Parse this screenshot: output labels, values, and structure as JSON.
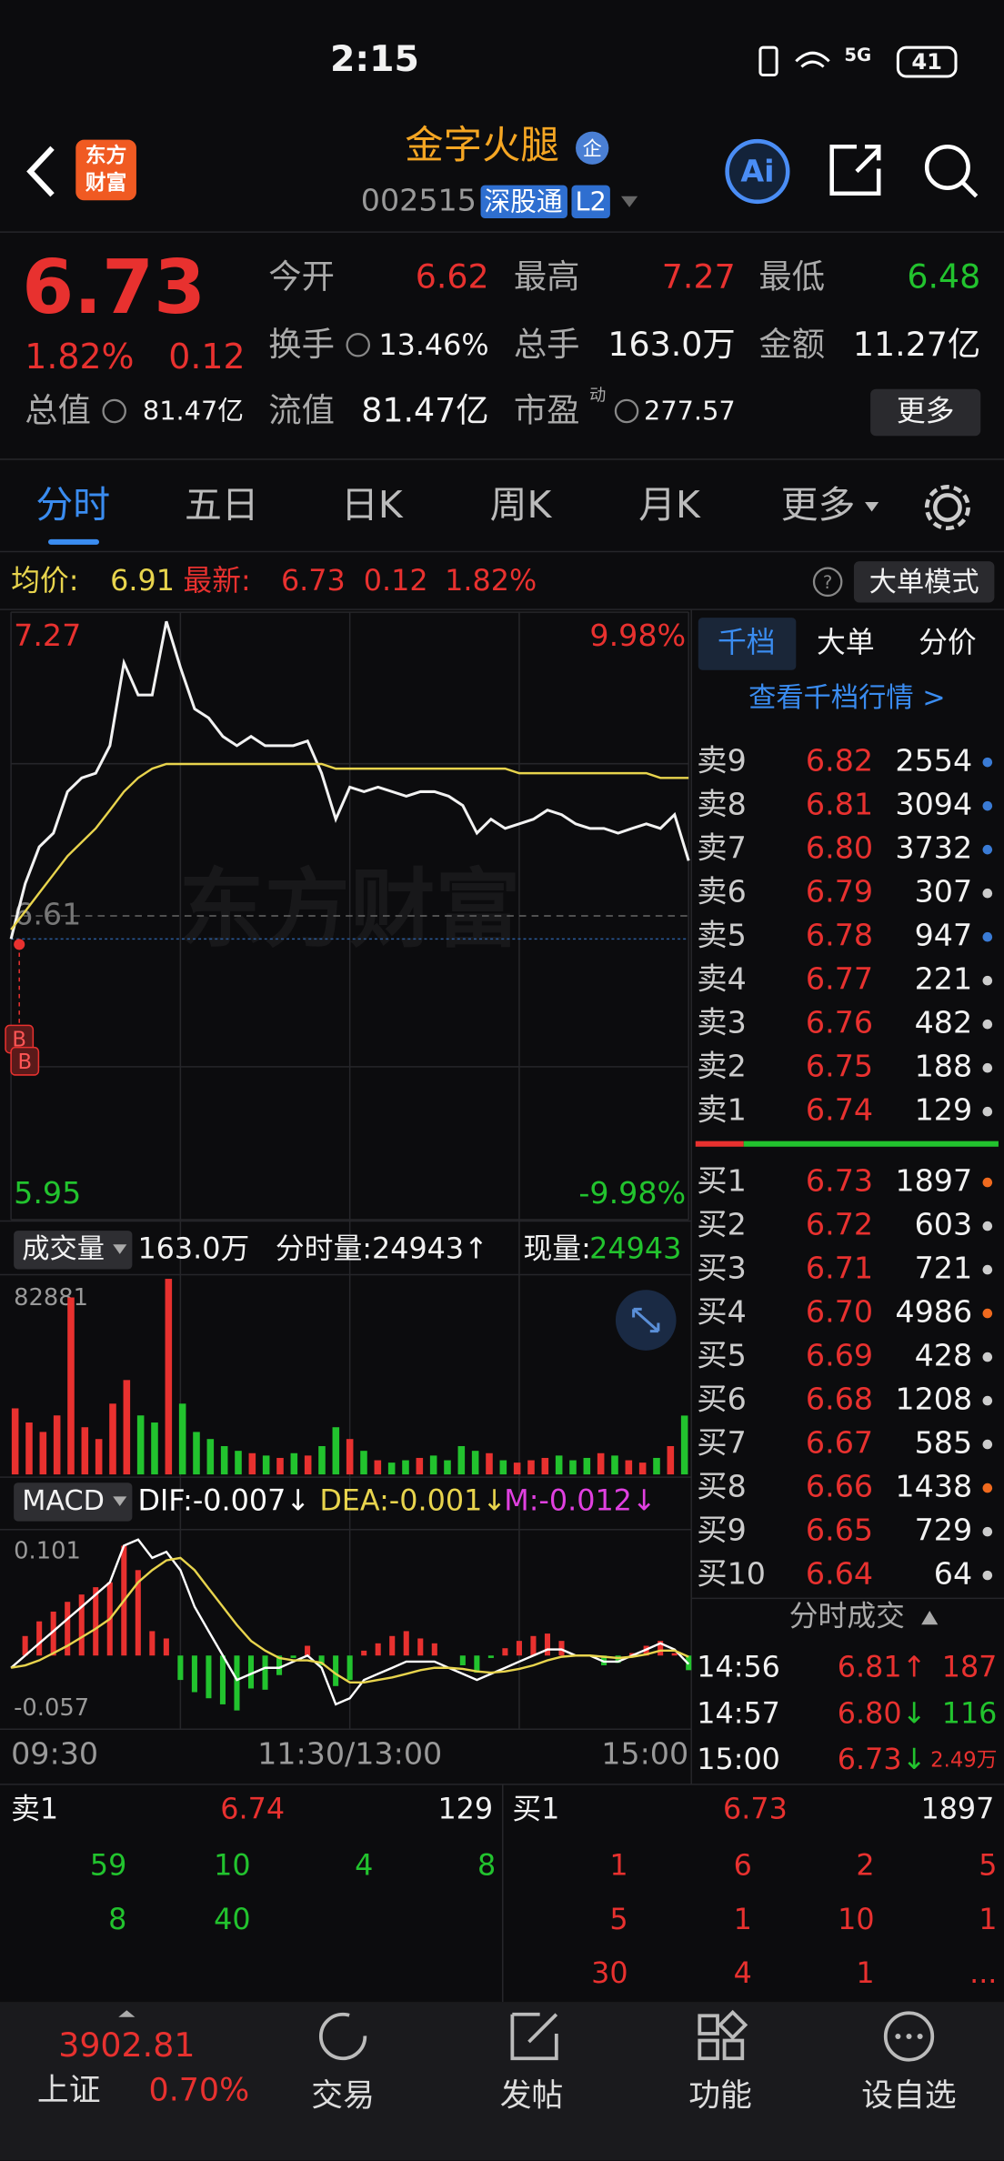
{
  "status_bar": {
    "time": "2:15",
    "network": "5G",
    "battery": "41"
  },
  "header": {
    "logo": [
      "东方",
      "财富"
    ],
    "name": "金字火腿",
    "badge": "企",
    "code": "002515",
    "tags": [
      "深股通",
      "L2"
    ],
    "ai": "Ai"
  },
  "quote": {
    "price": "6.73",
    "change_pct": "1.82%",
    "change": "0.12",
    "stats": [
      {
        "label": "今开",
        "value": "6.62"
      },
      {
        "label": "最高",
        "value": "7.27"
      },
      {
        "label": "最低",
        "value": "6.48"
      },
      {
        "label": "换手",
        "value": "13.46%"
      },
      {
        "label": "总手",
        "value": "163.0万"
      },
      {
        "label": "金额",
        "value": "11.27亿"
      },
      {
        "label": "总值",
        "value": "81.47亿"
      },
      {
        "label": "流值",
        "value": "81.47亿"
      },
      {
        "label": "市盈",
        "value": "277.57",
        "sup": "动"
      }
    ],
    "more": "更多"
  },
  "tabs": [
    "分时",
    "五日",
    "日K",
    "周K",
    "月K",
    "更多"
  ],
  "info_bar": {
    "avg_label": "均价:",
    "avg": "6.91",
    "latest_label": "最新:",
    "latest": "6.73",
    "change": "0.12",
    "change_pct": "1.82%",
    "mode": "大单模式"
  },
  "chart_data": [
    {
      "type": "line",
      "watermark": "东方财富",
      "markers": [
        "B",
        "B"
      ],
      "x": [
        0,
        5,
        10,
        15,
        20,
        25,
        30,
        35,
        40,
        45,
        50,
        55,
        60,
        65,
        70,
        75,
        80,
        85,
        90,
        95,
        100,
        105,
        110,
        115,
        120,
        125,
        130,
        135,
        140,
        145,
        150,
        155,
        160,
        165,
        170,
        175,
        180,
        185,
        190,
        195,
        200,
        205,
        210,
        215,
        220,
        225,
        230,
        235,
        240
      ],
      "xlim": [
        0,
        240
      ],
      "series": [
        {
          "color": "#f2f2f2",
          "values": [
            6.56,
            6.68,
            6.76,
            6.79,
            6.88,
            6.91,
            6.92,
            6.98,
            7.16,
            7.09,
            7.09,
            7.25,
            7.15,
            7.06,
            7.04,
            7.0,
            6.98,
            7.0,
            6.98,
            6.98,
            6.98,
            6.99,
            6.92,
            6.82,
            6.89,
            6.88,
            6.89,
            6.88,
            6.87,
            6.88,
            6.88,
            6.87,
            6.85,
            6.79,
            6.82,
            6.8,
            6.81,
            6.82,
            6.84,
            6.83,
            6.81,
            6.8,
            6.8,
            6.79,
            6.8,
            6.81,
            6.8,
            6.83,
            6.73
          ]
        },
        {
          "color": "#e8d44d",
          "values": [
            6.58,
            6.62,
            6.66,
            6.7,
            6.74,
            6.77,
            6.8,
            6.84,
            6.88,
            6.91,
            6.93,
            6.94,
            6.94,
            6.94,
            6.94,
            6.94,
            6.94,
            6.94,
            6.94,
            6.94,
            6.94,
            6.94,
            6.94,
            6.93,
            6.93,
            6.93,
            6.93,
            6.93,
            6.93,
            6.93,
            6.93,
            6.93,
            6.93,
            6.93,
            6.93,
            6.93,
            6.92,
            6.92,
            6.92,
            6.92,
            6.92,
            6.92,
            6.92,
            6.92,
            6.92,
            6.92,
            6.91,
            6.91,
            6.91
          ]
        }
      ],
      "ylim": [
        5.95,
        7.27
      ],
      "yticks": [
        7.27,
        6.61,
        5.95
      ],
      "y2lim": [
        -9.98,
        9.98
      ],
      "y2ticks": [
        {
          "value": 9.98,
          "label": "9.98%"
        },
        {
          "value": -9.98,
          "label": "-9.98%"
        }
      ]
    },
    {
      "type": "bar",
      "title": "成交量",
      "total": "163.0万",
      "period": "分时量:24943↑",
      "current_label": "现量:",
      "current": "24943",
      "x": [
        0,
        5,
        10,
        15,
        20,
        25,
        30,
        35,
        40,
        45,
        50,
        55,
        60,
        65,
        70,
        75,
        80,
        85,
        90,
        95,
        100,
        105,
        110,
        115,
        120,
        125,
        130,
        135,
        140,
        145,
        150,
        155,
        160,
        165,
        170,
        175,
        180,
        185,
        190,
        195,
        200,
        205,
        210,
        215,
        220,
        225,
        230,
        235,
        240
      ],
      "xlim": [
        0,
        240
      ],
      "values": [
        28000,
        22000,
        18000,
        25000,
        75000,
        20000,
        15000,
        30000,
        40000,
        25000,
        22000,
        82881,
        30000,
        18000,
        15000,
        12000,
        10000,
        9000,
        8000,
        7000,
        9000,
        8000,
        12000,
        20000,
        15000,
        10000,
        6000,
        5000,
        6000,
        7000,
        8000,
        6000,
        12000,
        10000,
        9000,
        6000,
        5000,
        6000,
        7000,
        8000,
        6000,
        7000,
        9000,
        8000,
        6000,
        5000,
        7000,
        12000,
        24943
      ],
      "colors": [
        "#e8312f",
        "#e8312f",
        "#e8312f",
        "#e8312f",
        "#e8312f",
        "#e8312f",
        "#e8312f",
        "#e8312f",
        "#e8312f",
        "#22c32e",
        "#22c32e",
        "#e8312f",
        "#22c32e",
        "#22c32e",
        "#22c32e",
        "#22c32e",
        "#22c32e",
        "#e8312f",
        "#22c32e",
        "#e8312f",
        "#22c32e",
        "#e8312f",
        "#22c32e",
        "#22c32e",
        "#e8312f",
        "#22c32e",
        "#e8312f",
        "#22c32e",
        "#22c32e",
        "#e8312f",
        "#22c32e",
        "#22c32e",
        "#22c32e",
        "#22c32e",
        "#e8312f",
        "#22c32e",
        "#e8312f",
        "#e8312f",
        "#e8312f",
        "#22c32e",
        "#22c32e",
        "#22c32e",
        "#e8312f",
        "#22c32e",
        "#e8312f",
        "#e8312f",
        "#22c32e",
        "#e8312f",
        "#22c32e"
      ],
      "ylim": [
        0,
        82881
      ],
      "yticks": [
        82881
      ]
    },
    {
      "type": "macd",
      "title": "MACD",
      "legend": [
        "DIF:-0.007↓",
        "DEA:-0.001↓",
        "M:-0.012↓"
      ],
      "x": [
        0,
        5,
        10,
        15,
        20,
        25,
        30,
        35,
        40,
        45,
        50,
        55,
        60,
        65,
        70,
        75,
        80,
        85,
        90,
        95,
        100,
        105,
        110,
        115,
        120,
        125,
        130,
        135,
        140,
        145,
        150,
        155,
        160,
        165,
        170,
        175,
        180,
        185,
        190,
        195,
        200,
        205,
        210,
        215,
        220,
        225,
        230,
        235,
        240
      ],
      "xlim": [
        0,
        240
      ],
      "xticks": [
        {
          "value": 0,
          "label": "09:30"
        },
        {
          "value": 120,
          "label": "11:30/13:00"
        },
        {
          "value": 240,
          "label": "15:00"
        }
      ],
      "series": [
        {
          "color": "#ffffff",
          "values": [
            -0.01,
            0.0,
            0.01,
            0.02,
            0.03,
            0.04,
            0.05,
            0.06,
            0.09,
            0.095,
            0.08,
            0.085,
            0.07,
            0.04,
            0.02,
            0.0,
            -0.02,
            -0.015,
            -0.01,
            -0.01,
            -0.005,
            0.0,
            -0.01,
            -0.04,
            -0.035,
            -0.02,
            -0.015,
            -0.01,
            -0.005,
            -0.005,
            -0.005,
            -0.01,
            -0.015,
            -0.02,
            -0.015,
            -0.01,
            -0.005,
            0.0,
            0.005,
            0.005,
            0.0,
            0.0,
            -0.005,
            -0.005,
            0.0,
            0.005,
            0.01,
            0.005,
            -0.007
          ]
        },
        {
          "color": "#e8d44d",
          "values": [
            -0.01,
            -0.008,
            -0.004,
            0.002,
            0.008,
            0.015,
            0.022,
            0.03,
            0.045,
            0.06,
            0.07,
            0.078,
            0.08,
            0.07,
            0.055,
            0.04,
            0.025,
            0.012,
            0.004,
            -0.002,
            -0.004,
            -0.004,
            -0.006,
            -0.015,
            -0.022,
            -0.022,
            -0.02,
            -0.018,
            -0.015,
            -0.012,
            -0.01,
            -0.01,
            -0.011,
            -0.013,
            -0.014,
            -0.013,
            -0.011,
            -0.008,
            -0.004,
            -0.001,
            0.0,
            0.0,
            -0.001,
            -0.002,
            -0.001,
            0.001,
            0.004,
            0.004,
            -0.001
          ]
        }
      ],
      "histogram": [
        0,
        0.016,
        0.028,
        0.036,
        0.044,
        0.05,
        0.056,
        0.06,
        0.09,
        0.07,
        0.02,
        0.014,
        -0.02,
        -0.03,
        -0.035,
        -0.04,
        -0.045,
        -0.027,
        -0.028,
        -0.016,
        -0.002,
        0.008,
        -0.008,
        -0.025,
        -0.02,
        0.004,
        0.01,
        0.016,
        0.02,
        0.014,
        0.01,
        0.0,
        -0.008,
        -0.014,
        -0.002,
        0.006,
        0.012,
        0.016,
        0.018,
        0.012,
        0,
        0,
        -0.008,
        -0.006,
        0.002,
        0.008,
        0.012,
        0.002,
        -0.012
      ],
      "bar_colors": [
        "#e8312f",
        "#22c32e"
      ],
      "legend_colors": [
        "#ffffff",
        "#e8d44d",
        "#e040e0"
      ],
      "ylim": [
        -0.057,
        0.101
      ],
      "yticks": [
        0.101,
        -0.057
      ]
    }
  ],
  "order_book": {
    "tabs": [
      "千档",
      "大单",
      "分价"
    ],
    "link": "查看千档行情 >",
    "asks": [
      {
        "label": "卖9",
        "price": "6.82",
        "volume": "2554",
        "dot": "#3a7bd5"
      },
      {
        "label": "卖8",
        "price": "6.81",
        "volume": "3094",
        "dot": "#3a7bd5"
      },
      {
        "label": "卖7",
        "price": "6.80",
        "volume": "3732",
        "dot": "#3a7bd5"
      },
      {
        "label": "卖6",
        "price": "6.79",
        "volume": "307",
        "dot": "#cccccc"
      },
      {
        "label": "卖5",
        "price": "6.78",
        "volume": "947",
        "dot": "#3a7bd5"
      },
      {
        "label": "卖4",
        "price": "6.77",
        "volume": "221",
        "dot": "#cccccc"
      },
      {
        "label": "卖3",
        "price": "6.76",
        "volume": "482",
        "dot": "#cccccc"
      },
      {
        "label": "卖2",
        "price": "6.75",
        "volume": "188",
        "dot": "#cccccc"
      },
      {
        "label": "卖1",
        "price": "6.74",
        "volume": "129",
        "dot": "#cccccc"
      }
    ],
    "bids": [
      {
        "label": "买1",
        "price": "6.73",
        "volume": "1897",
        "dot": "#f06a1e"
      },
      {
        "label": "买2",
        "price": "6.72",
        "volume": "603",
        "dot": "#cccccc"
      },
      {
        "label": "买3",
        "price": "6.71",
        "volume": "721",
        "dot": "#cccccc"
      },
      {
        "label": "买4",
        "price": "6.70",
        "volume": "4986",
        "dot": "#f06a1e"
      },
      {
        "label": "买5",
        "price": "6.69",
        "volume": "428",
        "dot": "#cccccc"
      },
      {
        "label": "买6",
        "price": "6.68",
        "volume": "1208",
        "dot": "#cccccc"
      },
      {
        "label": "买7",
        "price": "6.67",
        "volume": "585",
        "dot": "#cccccc"
      },
      {
        "label": "买8",
        "price": "6.66",
        "volume": "1438",
        "dot": "#f06a1e"
      },
      {
        "label": "买9",
        "price": "6.65",
        "volume": "729",
        "dot": "#cccccc"
      },
      {
        "label": "买10",
        "price": "6.64",
        "volume": "64",
        "dot": "#cccccc"
      }
    ]
  },
  "trades": {
    "title": "分时成交",
    "rows": [
      {
        "time": "14:56",
        "price": "6.81",
        "arrow": "↑",
        "volume": "187",
        "color": "#e8312f"
      },
      {
        "time": "14:57",
        "price": "6.80",
        "arrow": "↓",
        "volume": "116",
        "color": "#22c32e"
      },
      {
        "time": "15:00",
        "price": "6.73",
        "arrow": "↓",
        "volume": "2.49万",
        "color": "#e8312f"
      }
    ]
  },
  "level1": {
    "ask_label": "卖1",
    "ask_price": "6.74",
    "ask_volume": "129",
    "bid_label": "买1",
    "bid_price": "6.73",
    "bid_volume": "1897",
    "ask_queue": [
      "59",
      "10",
      "4",
      "8",
      "8",
      "40"
    ],
    "bid_queue": [
      "1",
      "6",
      "2",
      "5",
      "5",
      "1",
      "10",
      "1",
      "30",
      "4",
      "1",
      "..."
    ]
  },
  "bottom_nav": {
    "index_value": "3902.81",
    "index_name": "上证",
    "index_change": "0.70%",
    "items": [
      "交易",
      "发帖",
      "功能",
      "设自选"
    ]
  }
}
